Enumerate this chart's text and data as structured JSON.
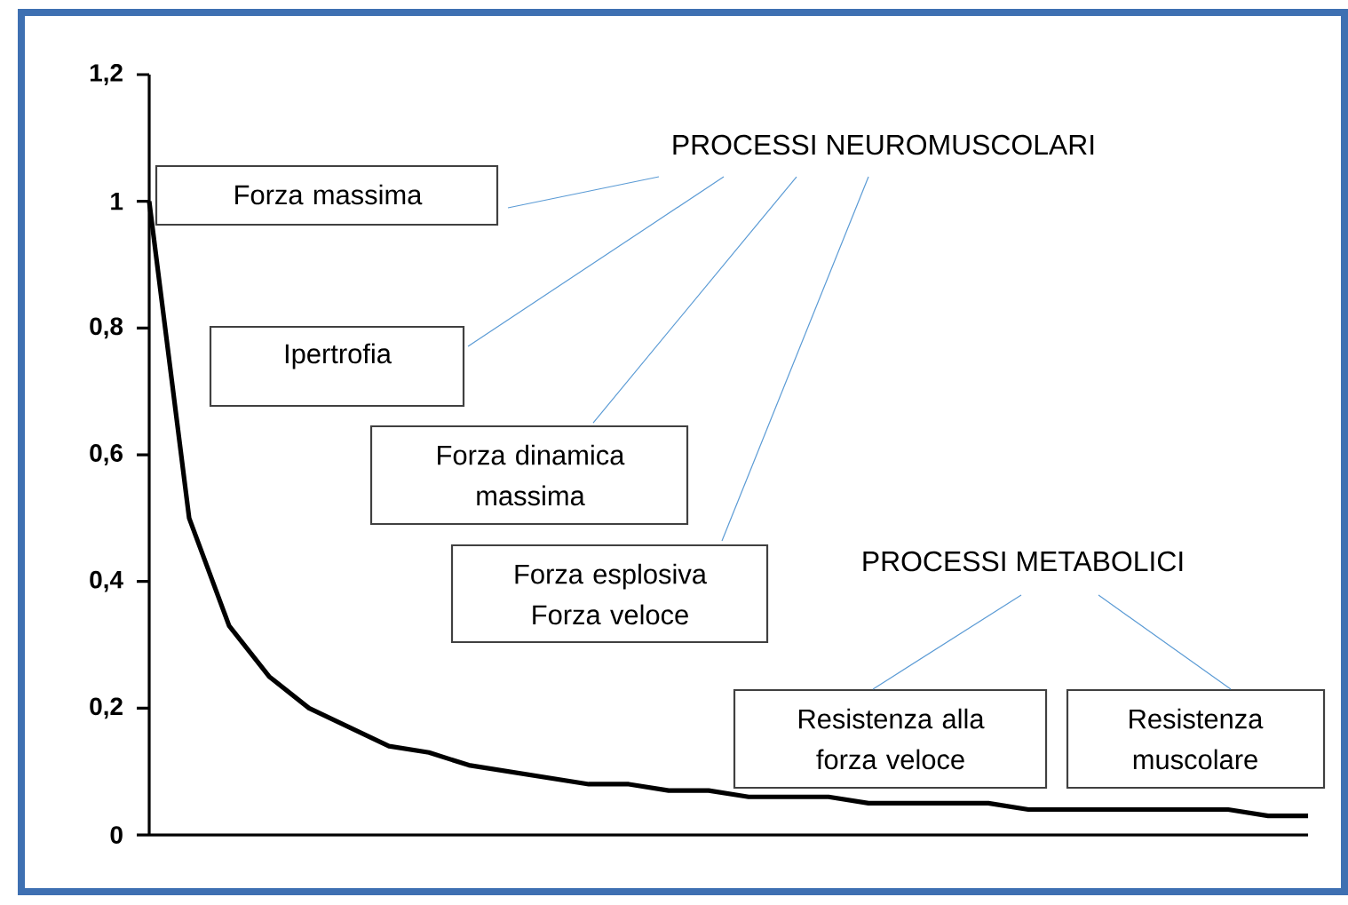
{
  "chart_data": {
    "type": "line",
    "categories": [
      null,
      null,
      null,
      null,
      null,
      null,
      null,
      null,
      null,
      null,
      null,
      null,
      null,
      null,
      null,
      null,
      null,
      null,
      null,
      null,
      null,
      null,
      null,
      null,
      null,
      null,
      null,
      null,
      null,
      null
    ],
    "series": [
      {
        "color": "#000000",
        "values": [
          1,
          0.5,
          0.33,
          0.25,
          0.2,
          0.17,
          0.14,
          0.13,
          0.11,
          0.1,
          0.09,
          0.08,
          0.08,
          0.07,
          0.07,
          0.06,
          0.06,
          0.06,
          0.05,
          0.05,
          0.05,
          0.05,
          0.04,
          0.04,
          0.04,
          0.04,
          0.04,
          0.04,
          0.03,
          0.03
        ]
      }
    ],
    "ylim": [
      0,
      1.2
    ],
    "yticks": [
      0,
      {
        "value": 0.2,
        "label": "0,2"
      },
      {
        "value": 0.4,
        "label": "0,4"
      },
      {
        "value": 0.6,
        "label": "0,6"
      },
      {
        "value": 0.8,
        "label": "0,8"
      },
      1,
      {
        "value": 1.2,
        "label": "1,2"
      }
    ],
    "tick_labels": "y",
    "annotations": [
      "PROCESSI NEUROMUSCOLARI",
      "Forza massima",
      "Ipertrofia",
      "Forza dinamica massima",
      "Forza esplosiva Forza veloce",
      "PROCESSI METABOLICI",
      "Resistenza alla forza veloce",
      "Resistenza muscolare"
    ]
  }
}
